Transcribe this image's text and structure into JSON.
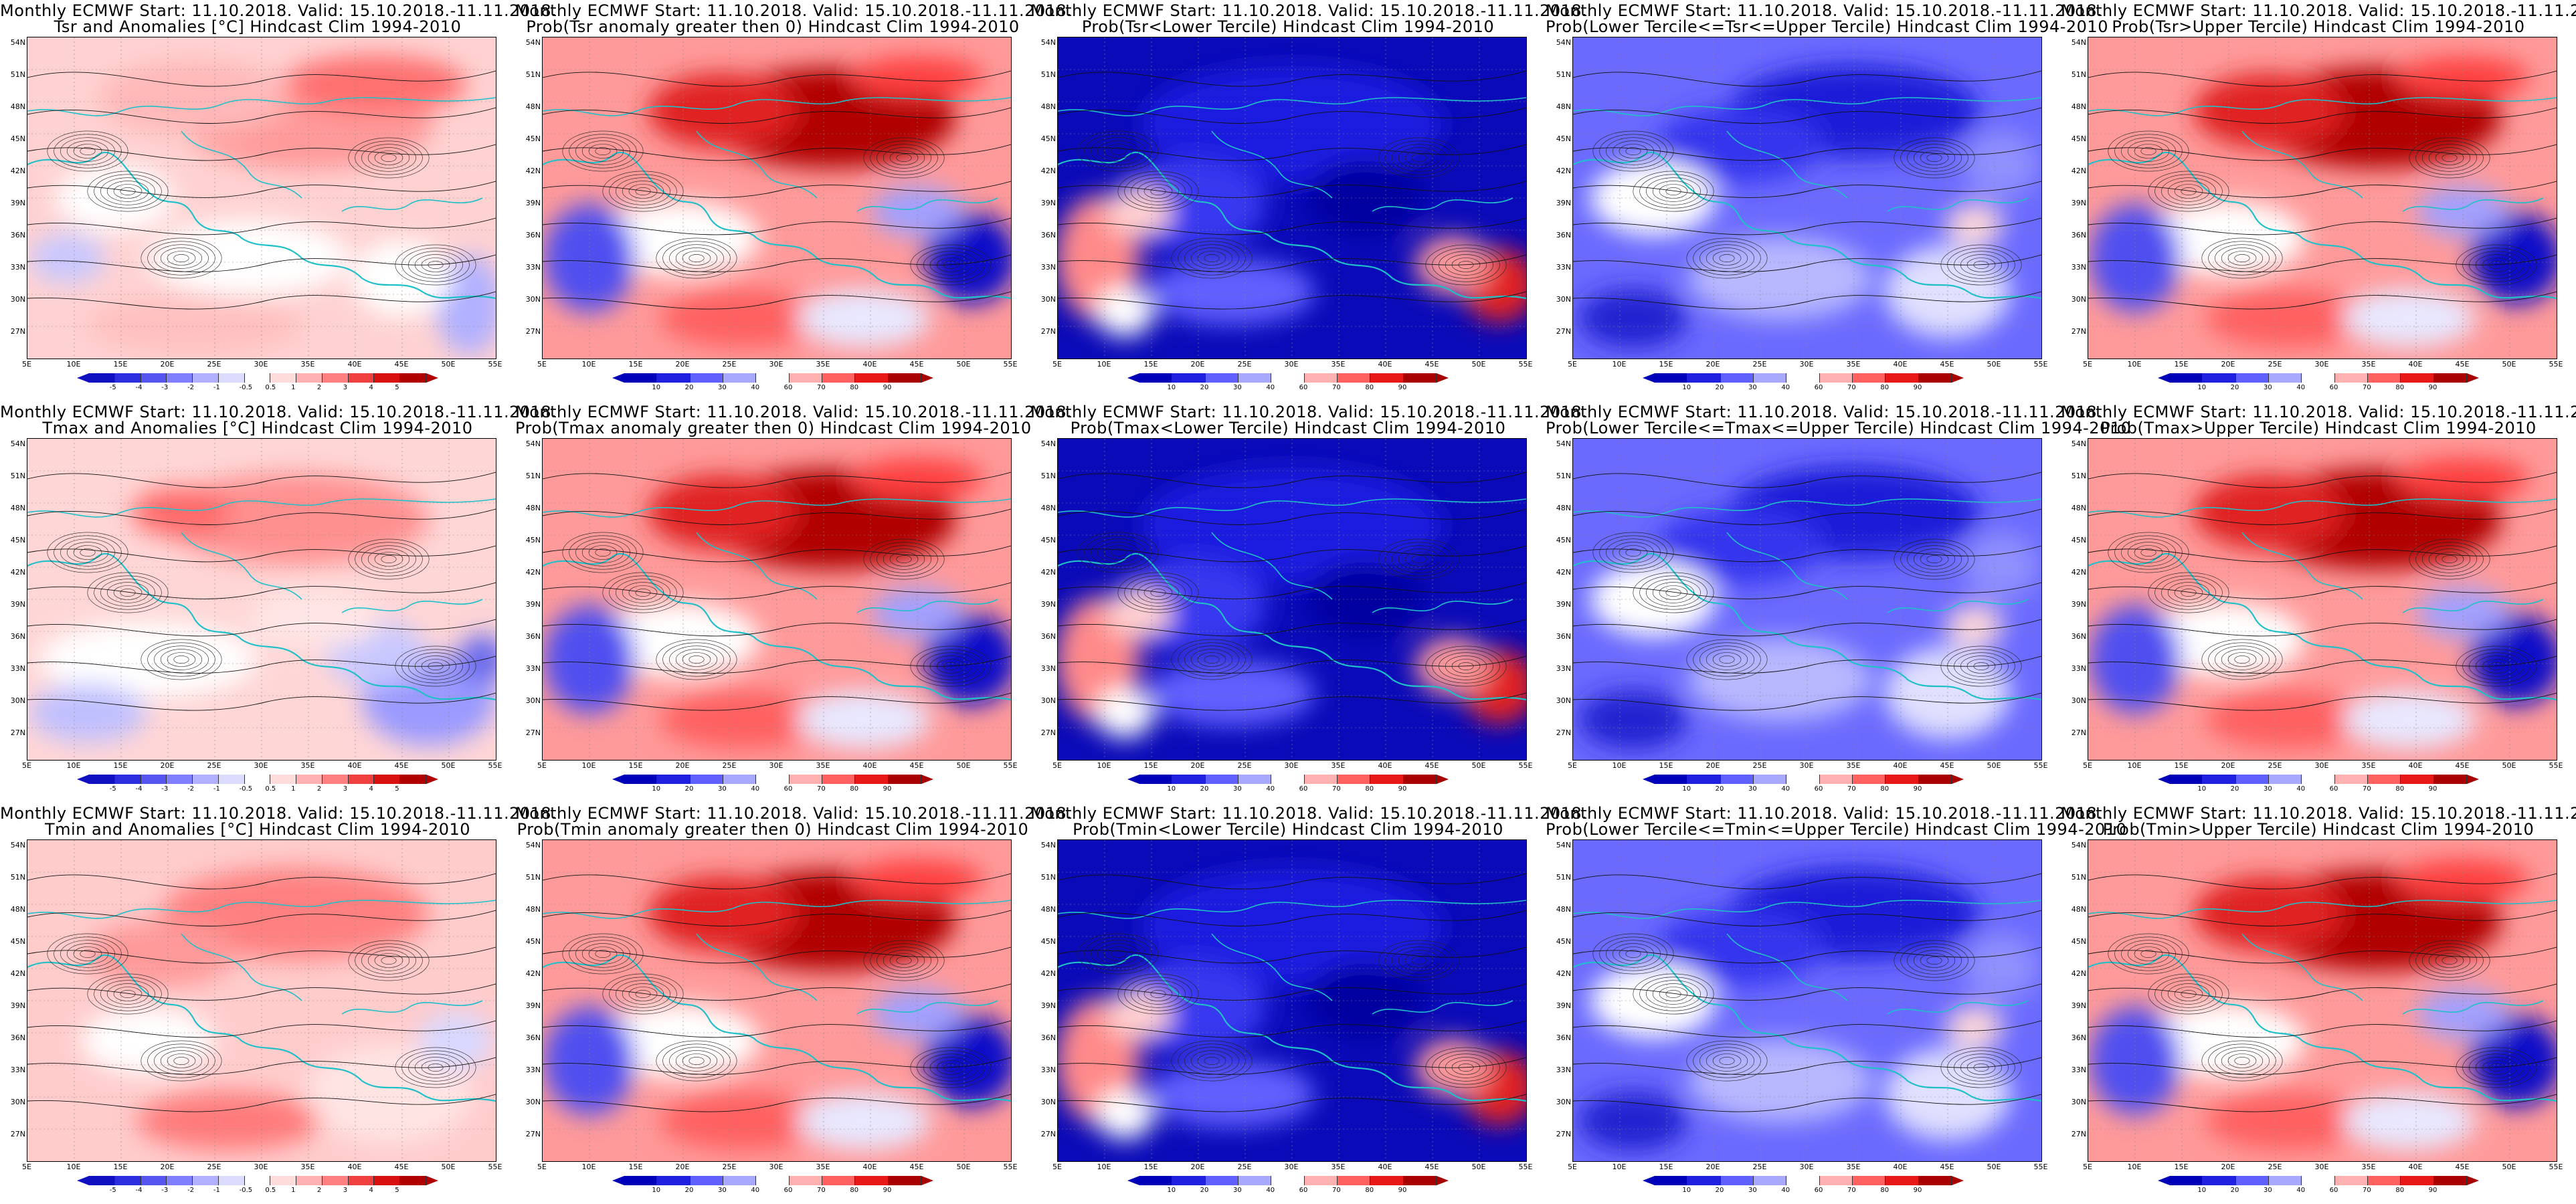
{
  "title_top": "Monthly ECMWF Start: 11.10.2018. Valid: 15.10.2018.-11.11.2018.",
  "lat_labels": [
    "54N",
    "51N",
    "48N",
    "45N",
    "42N",
    "39N",
    "36N",
    "33N",
    "30N",
    "27N"
  ],
  "lon_labels": [
    "5E",
    "10E",
    "15E",
    "20E",
    "25E",
    "30E",
    "35E",
    "40E",
    "45E",
    "50E",
    "55E"
  ],
  "legends": {
    "anom": {
      "labels": [
        "-5",
        "-4",
        "-3",
        "-2",
        "-1",
        "-0.5",
        "0.5",
        "1",
        "2",
        "3",
        "4",
        "5"
      ],
      "colors": [
        "#1010c0",
        "#2d2de0",
        "#5555f0",
        "#8080ff",
        "#b0b0ff",
        "#dcdcff",
        "#ffffff",
        "#ffdcdc",
        "#ffb0b0",
        "#ff8080",
        "#f04040",
        "#d81010",
        "#b00000"
      ]
    },
    "prob": {
      "labels": [
        "10",
        "20",
        "30",
        "40",
        "60",
        "70",
        "80",
        "90"
      ],
      "colors": [
        "#0000b8",
        "#2020e0",
        "#6060ff",
        "#a8a8ff",
        "#ffffff",
        "#ffb0b0",
        "#ff6060",
        "#e81818",
        "#a80000"
      ]
    }
  },
  "panels": [
    {
      "title": "Tsr and Anomalies [°C] Hindcast Clim 1994-2010",
      "legend": "anom",
      "scheme": "anomT"
    },
    {
      "title": "Prob(Tsr anomaly greater then 0) Hindcast Clim 1994-2010",
      "legend": "prob",
      "scheme": "warm"
    },
    {
      "title": "Prob(Tsr<Lower Tercile) Hindcast Clim 1994-2010",
      "legend": "prob",
      "scheme": "cold"
    },
    {
      "title": "Prob(Lower Tercile<=Tsr<=Upper Tercile) Hindcast Clim 1994-2010",
      "legend": "prob",
      "scheme": "mid"
    },
    {
      "title": "Prob(Tsr>Upper Tercile) Hindcast Clim 1994-2010",
      "legend": "prob",
      "scheme": "warm"
    },
    {
      "title": "Tmax and Anomalies [°C] Hindcast Clim 1994-2010",
      "legend": "anom",
      "scheme": "anomX"
    },
    {
      "title": "Prob(Tmax anomaly greater then 0) Hindcast Clim 1994-2010",
      "legend": "prob",
      "scheme": "warm"
    },
    {
      "title": "Prob(Tmax<Lower Tercile) Hindcast Clim 1994-2010",
      "legend": "prob",
      "scheme": "cold"
    },
    {
      "title": "Prob(Lower Tercile<=Tmax<=Upper Tercile) Hindcast Clim 1994-2010",
      "legend": "prob",
      "scheme": "mid"
    },
    {
      "title": "Prob(Tmax>Upper Tercile) Hindcast Clim 1994-2010",
      "legend": "prob",
      "scheme": "warm"
    },
    {
      "title": "Tmin and Anomalies [°C] Hindcast Clim 1994-2010",
      "legend": "anom",
      "scheme": "anomN"
    },
    {
      "title": "Prob(Tmin anomaly greater then 0) Hindcast Clim 1994-2010",
      "legend": "prob",
      "scheme": "warm"
    },
    {
      "title": "Prob(Tmin<Lower Tercile) Hindcast Clim 1994-2010",
      "legend": "prob",
      "scheme": "cold"
    },
    {
      "title": "Prob(Lower Tercile<=Tmin<=Upper Tercile) Hindcast Clim 1994-2010",
      "legend": "prob",
      "scheme": "mid"
    },
    {
      "title": "Prob(Tmin>Upper Tercile) Hindcast Clim 1994-2010",
      "legend": "prob",
      "scheme": "warm"
    }
  ]
}
